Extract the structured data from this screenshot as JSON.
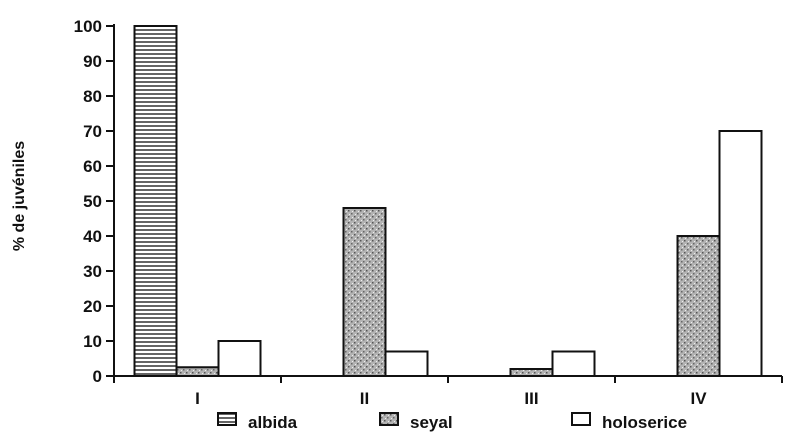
{
  "chart_data": {
    "type": "bar",
    "ylabel": "% de juvéniles",
    "xlabel": "",
    "categories": [
      "I",
      "II",
      "III",
      "IV"
    ],
    "ylim": [
      0,
      100
    ],
    "yticks": [
      0,
      10,
      20,
      30,
      40,
      50,
      60,
      70,
      80,
      90,
      100
    ],
    "series": [
      {
        "name": "albida",
        "values": [
          100,
          0,
          0,
          0
        ],
        "fill": "hatch-horizontal"
      },
      {
        "name": "seyal",
        "values": [
          2.5,
          48,
          2,
          40
        ],
        "fill": "stipple-gray"
      },
      {
        "name": "holoserice",
        "values": [
          10,
          7,
          7,
          70
        ],
        "fill": "white"
      }
    ],
    "legend_position": "bottom",
    "grid": false,
    "colors": {
      "line": "#111111",
      "seyal_base": "#b8b8b8",
      "background": "#ffffff"
    }
  }
}
